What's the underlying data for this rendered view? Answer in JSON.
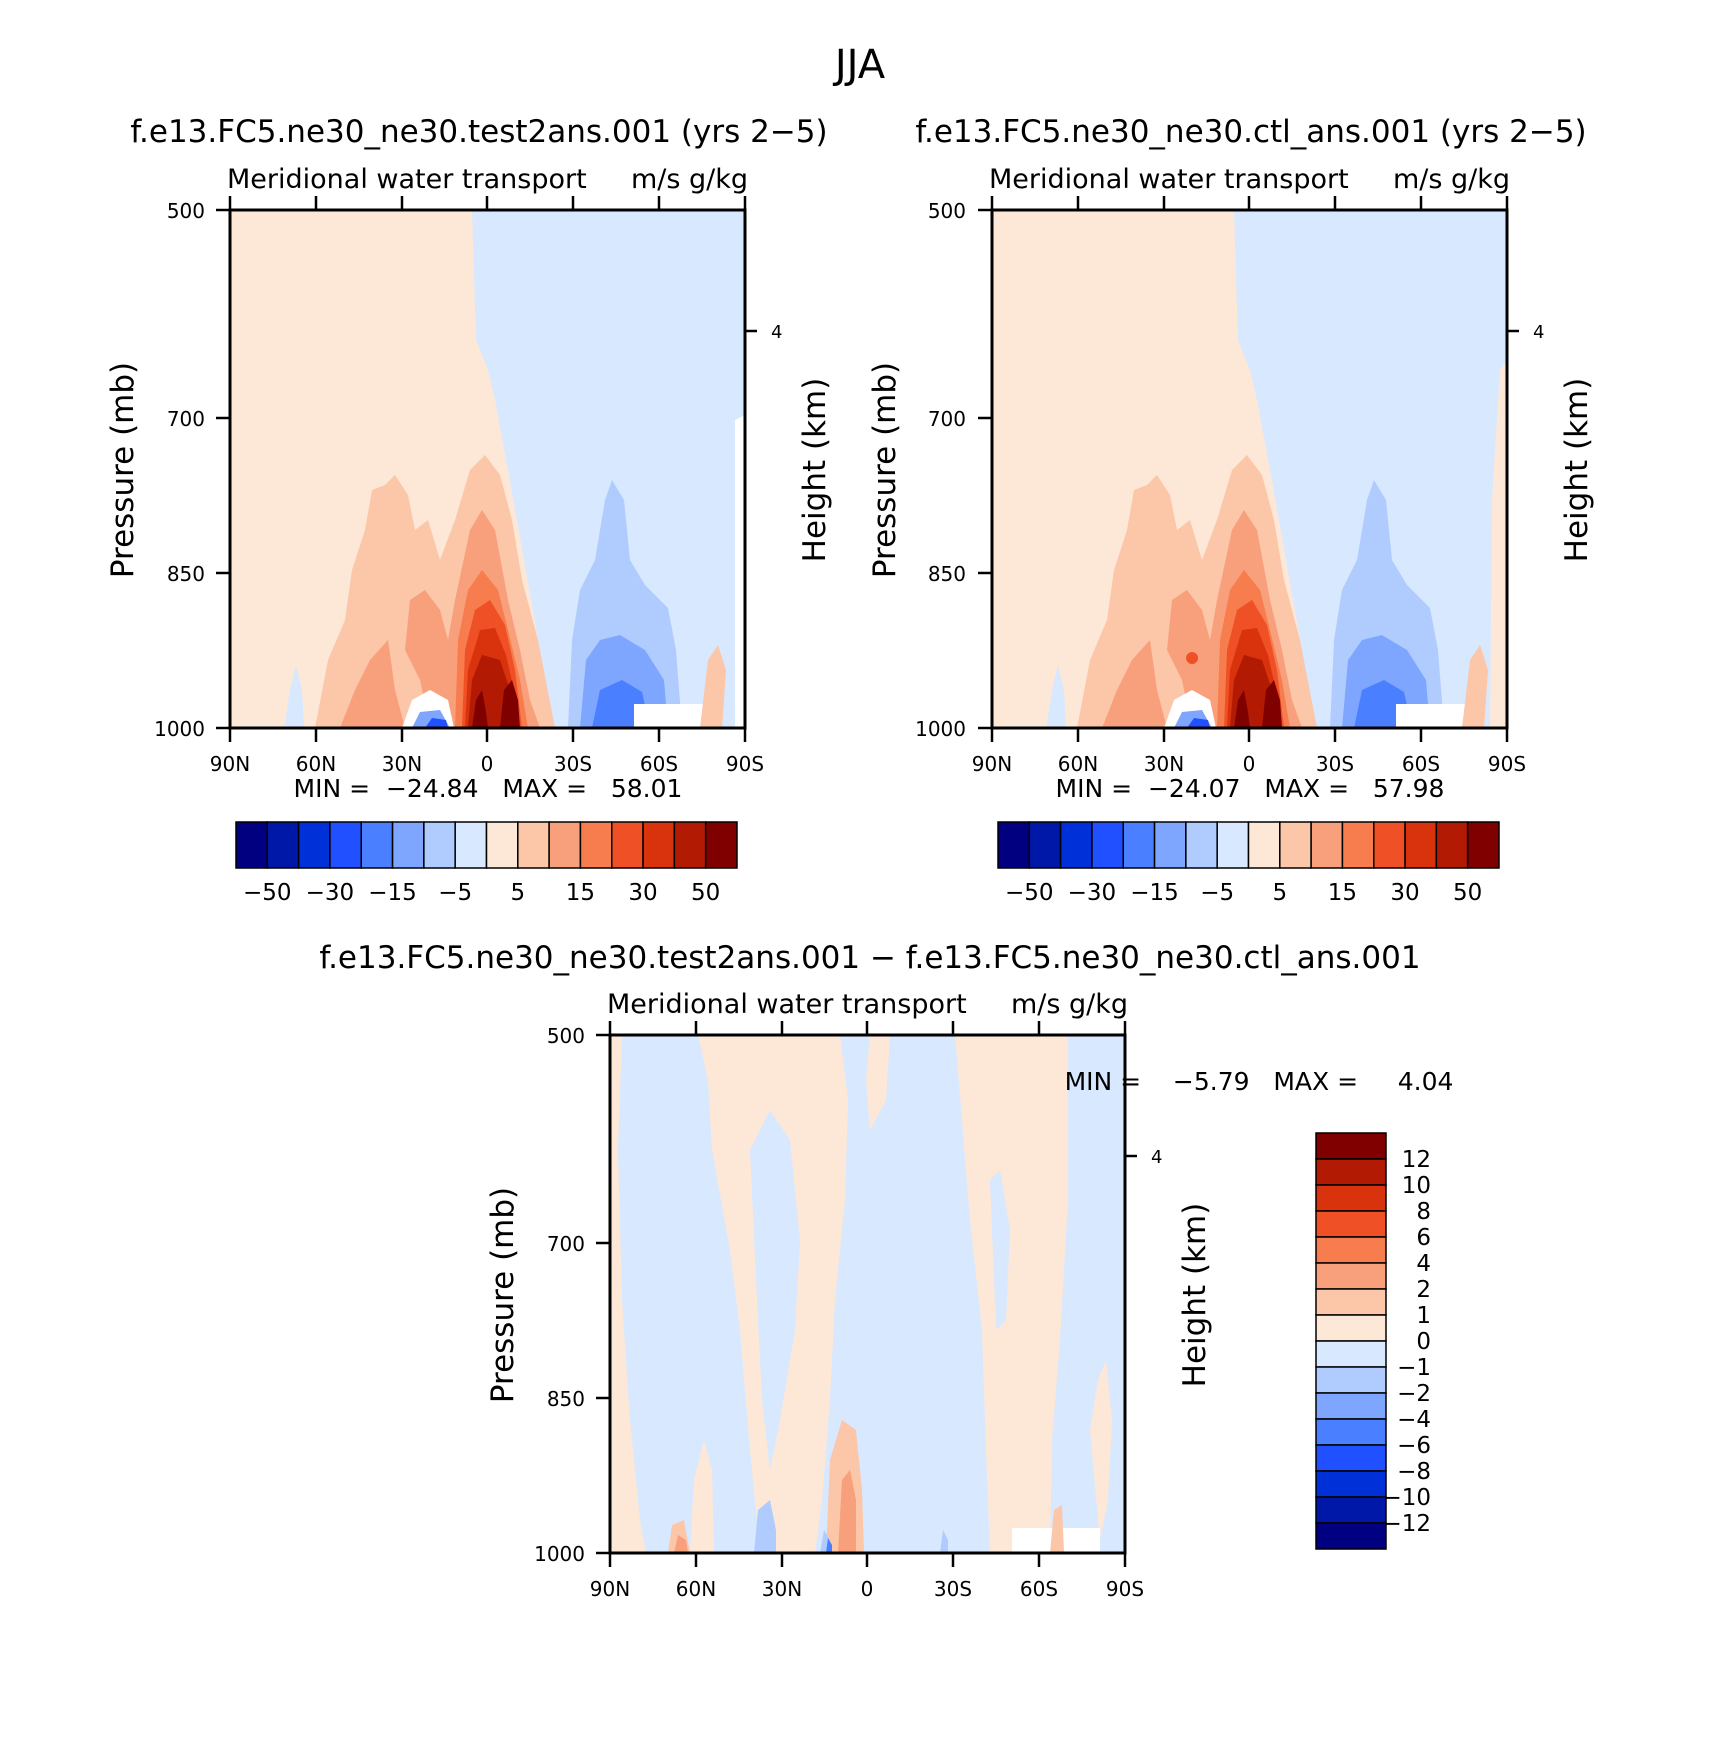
{
  "figure": {
    "title": "JJA"
  },
  "chart_data": [
    {
      "type": "heatmap",
      "title": "f.e13.FC5.ne30_ne30.test2ans.001 (yrs 2−5)",
      "subtitle_left": "Meridional water transport",
      "subtitle_right": "m/s g/kg",
      "ylabel": "Pressure (mb)",
      "ylabel_right": "Height (km)",
      "x_ticks": [
        "90N",
        "60N",
        "30N",
        "0",
        "30S",
        "60S",
        "90S"
      ],
      "y_ticks": [
        500,
        700,
        850,
        1000
      ],
      "ylim": [
        1000,
        500
      ],
      "right_ticks": [
        "4"
      ],
      "min_max": "MIN =  −24.84   MAX =   58.01",
      "colorbar": {
        "orientation": "horizontal",
        "levels": [
          -50,
          -40,
          -30,
          -20,
          -15,
          -10,
          -5,
          0,
          5,
          10,
          15,
          20,
          30,
          40,
          50
        ],
        "labels": [
          "−50",
          "−30",
          "−15",
          "−5",
          "5",
          "15",
          "30",
          "50"
        ]
      }
    },
    {
      "type": "heatmap",
      "title": "f.e13.FC5.ne30_ne30.ctl_ans.001 (yrs 2−5)",
      "subtitle_left": "Meridional water transport",
      "subtitle_right": "m/s g/kg",
      "ylabel": "Pressure (mb)",
      "ylabel_right": "Height (km)",
      "x_ticks": [
        "90N",
        "60N",
        "30N",
        "0",
        "30S",
        "60S",
        "90S"
      ],
      "y_ticks": [
        500,
        700,
        850,
        1000
      ],
      "ylim": [
        1000,
        500
      ],
      "right_ticks": [
        "4"
      ],
      "min_max": "MIN =  −24.07   MAX =   57.98",
      "colorbar": {
        "orientation": "horizontal",
        "levels": [
          -50,
          -40,
          -30,
          -20,
          -15,
          -10,
          -5,
          0,
          5,
          10,
          15,
          20,
          30,
          40,
          50
        ],
        "labels": [
          "−50",
          "−30",
          "−15",
          "−5",
          "5",
          "15",
          "30",
          "50"
        ]
      }
    },
    {
      "type": "heatmap",
      "title": "f.e13.FC5.ne30_ne30.test2ans.001 − f.e13.FC5.ne30_ne30.ctl_ans.001",
      "subtitle_left": "Meridional water transport",
      "subtitle_right": "m/s g/kg",
      "ylabel": "Pressure (mb)",
      "ylabel_right": "Height (km)",
      "x_ticks": [
        "90N",
        "60N",
        "30N",
        "0",
        "30S",
        "60S",
        "90S"
      ],
      "y_ticks": [
        500,
        700,
        850,
        1000
      ],
      "ylim": [
        1000,
        500
      ],
      "right_ticks": [
        "4"
      ],
      "min_max": "MIN =    −5.79   MAX =     4.04",
      "colorbar": {
        "orientation": "vertical",
        "levels": [
          -12,
          -10,
          -8,
          -6,
          -4,
          -2,
          -1,
          0,
          1,
          2,
          4,
          6,
          8,
          10,
          12
        ],
        "labels": [
          "12",
          "10",
          "8",
          "6",
          "4",
          "2",
          "1",
          "0",
          "−1",
          "−2",
          "−4",
          "−6",
          "−8",
          "−10",
          "−12"
        ]
      }
    }
  ],
  "colors": {
    "b8": "#000080",
    "b7": "#0018a8",
    "b6": "#0030d8",
    "b5": "#2050ff",
    "b4": "#4a80ff",
    "b3": "#7ea6ff",
    "b2": "#b0ccff",
    "b1": "#d8e8ff",
    "r1": "#fde8d8",
    "r2": "#fcc6a8",
    "r3": "#f8a07c",
    "r4": "#f77d4e",
    "r5": "#f05025",
    "r6": "#d8330c",
    "r7": "#b21a04",
    "r8": "#800000"
  }
}
